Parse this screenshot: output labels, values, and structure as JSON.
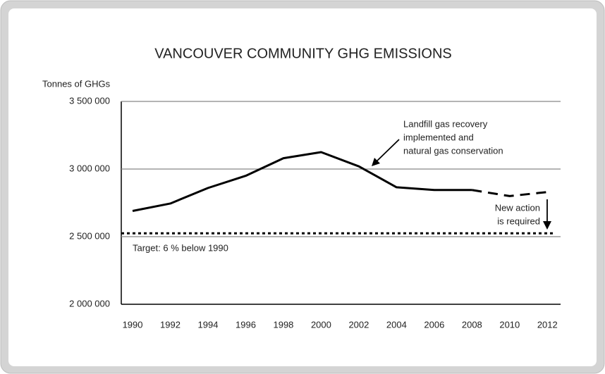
{
  "chart_data": {
    "type": "line",
    "title": "VANCOUVER COMMUNITY GHG EMISSIONS",
    "y_label": "Tonnes of GHGs",
    "x": [
      1990,
      1992,
      1994,
      1996,
      1998,
      2000,
      2002,
      2004,
      2006,
      2008,
      2010,
      2012
    ],
    "xlim": [
      1989.4,
      2012.7
    ],
    "xticks": [
      1990,
      1992,
      1994,
      1996,
      1998,
      2000,
      2002,
      2004,
      2006,
      2008,
      2010,
      2012
    ],
    "ylim": [
      2000000,
      3500000
    ],
    "yticks": [
      {
        "value": 2000000,
        "label": "2 000 000"
      },
      {
        "value": 2500000,
        "label": "2 500 000"
      },
      {
        "value": 3000000,
        "label": "3 000 000"
      },
      {
        "value": 3500000,
        "label": "3 500 000"
      }
    ],
    "grid": true,
    "series": [
      {
        "color": "#000000",
        "style": "solid",
        "values": [
          2690000,
          2745000,
          2860000,
          2950000,
          3080000,
          3125000,
          3020000,
          2865000,
          2845000,
          2845000,
          null,
          null
        ]
      },
      {
        "color": "#000000",
        "style": "dashed",
        "values": [
          null,
          null,
          null,
          null,
          null,
          null,
          null,
          null,
          null,
          2845000,
          2800000,
          2830000
        ]
      }
    ],
    "target": {
      "label": "Target: 6 % below 1990",
      "value": 2525000,
      "color": "#000000",
      "style": "dotted"
    },
    "annotations": [
      {
        "lines": [
          "Landfill gas recovery",
          "implemented and",
          "natural gas conservation"
        ]
      },
      {
        "lines": [
          "New action",
          "is required"
        ]
      }
    ]
  }
}
